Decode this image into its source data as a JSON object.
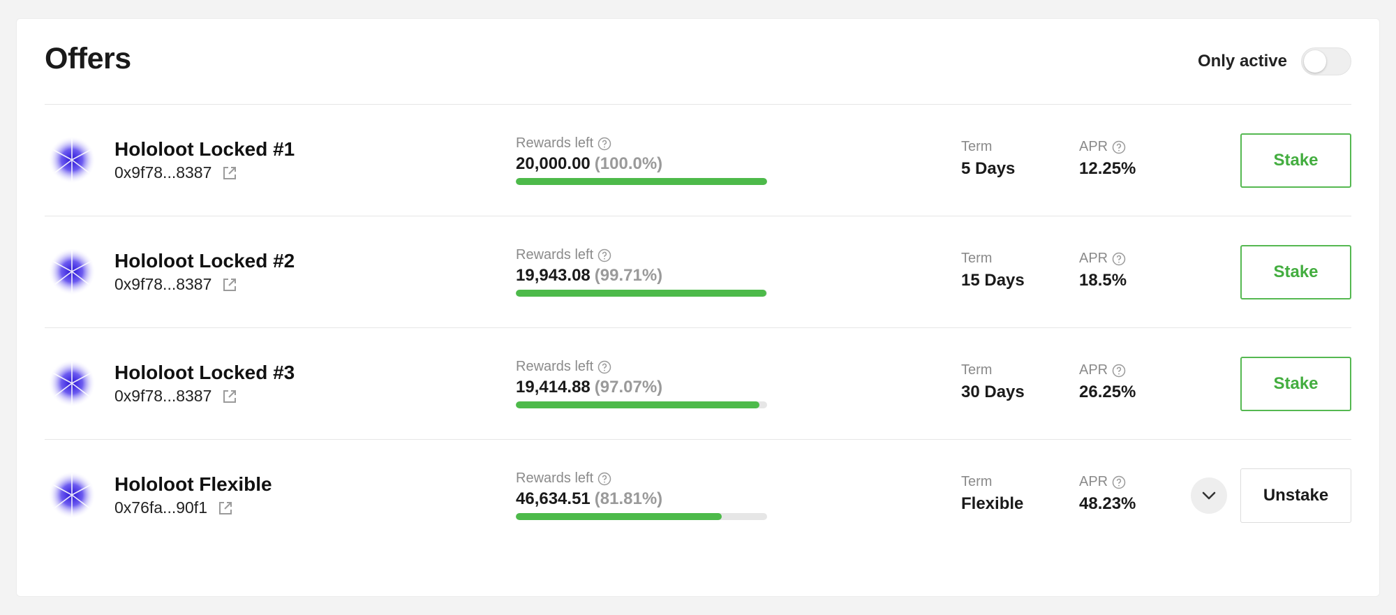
{
  "header": {
    "title": "Offers",
    "filter_label": "Only active",
    "filter_on": false
  },
  "labels": {
    "rewards_left": "Rewards left",
    "term": "Term",
    "apr": "APR"
  },
  "colors": {
    "accent_green": "#4dba4a",
    "token_icon": "#6d5cf0"
  },
  "offers": [
    {
      "name": "Hololoot Locked #1",
      "address": "0x9f78...8387",
      "rewards_value": "20,000.00",
      "rewards_pct": "(100.0%)",
      "progress": 100.0,
      "term": "5 Days",
      "apr": "12.25%",
      "action": "Stake"
    },
    {
      "name": "Hololoot Locked #2",
      "address": "0x9f78...8387",
      "rewards_value": "19,943.08",
      "rewards_pct": "(99.71%)",
      "progress": 99.71,
      "term": "15 Days",
      "apr": "18.5%",
      "action": "Stake"
    },
    {
      "name": "Hololoot Locked #3",
      "address": "0x9f78...8387",
      "rewards_value": "19,414.88",
      "rewards_pct": "(97.07%)",
      "progress": 97.07,
      "term": "30 Days",
      "apr": "26.25%",
      "action": "Stake"
    },
    {
      "name": "Hololoot Flexible",
      "address": "0x76fa...90f1",
      "rewards_value": "46,634.51",
      "rewards_pct": "(81.81%)",
      "progress": 81.81,
      "term": "Flexible",
      "apr": "48.23%",
      "action": "Unstake",
      "expandable": true
    }
  ]
}
